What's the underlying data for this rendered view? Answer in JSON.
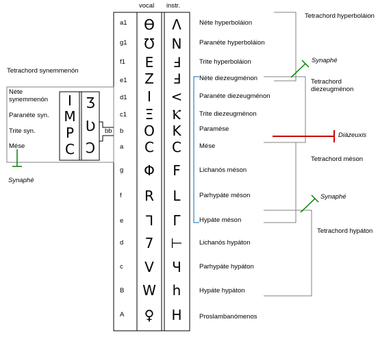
{
  "columns": {
    "vocal": "vocal",
    "instr": "instr."
  },
  "pitches": [
    "a1",
    "g1",
    "f1",
    "e1",
    "d1",
    "c1",
    "b",
    "a",
    "g",
    "f",
    "e",
    "d",
    "c",
    "B",
    "A"
  ],
  "names": [
    "Néte hyperboláion",
    "Paranéte hyperboláion",
    "Trite hyperboláion",
    "Néte diezeugménon",
    "Paranéte diezeugménon",
    "Trite diezeugménon",
    "Paramése",
    "Mése",
    "Lichanós méson",
    "Parhypáte méson",
    "Hypáte méson",
    "Lichanós hypáton",
    "Parhypáte hypáton",
    "Hypáte hypáton",
    "Proslambanómenos"
  ],
  "vocal_glyphs": [
    "ϴ",
    "Ʊ",
    "Ε",
    "Ζ",
    "Ι",
    "Ξ",
    "Ο",
    "C",
    "Φ",
    "R",
    "ᒣ",
    "7",
    "V",
    "W",
    "♀"
  ],
  "instr_glyphs": [
    "Ʌ",
    "Ν",
    "Ⅎ",
    "Ⅎ",
    "<",
    "Ⲕ",
    "K",
    "C",
    "F",
    "L",
    "Γ",
    "⊢",
    "Ч",
    "h",
    "H"
  ],
  "tetrachords": {
    "hyperbolaion": "Tetrachord hyperboláion",
    "diezeugmenon": "Tetrachord diezeugménon",
    "meson": "Tetrachord méson",
    "hypaton": "Tetrachord hypáton",
    "synemmenon": "Tetrachord synemmenón"
  },
  "synemmenon": {
    "nete": "Néte synemmenón",
    "paranete": "Paranéte syn.",
    "trite": "Trite syn.",
    "mese": "Mése",
    "bb": "bb",
    "vocal_glyphs": [
      "Ι",
      "Μ",
      "P",
      "C"
    ],
    "instr_glyphs": [
      "Ʒ",
      "Ʋ",
      "Ͻ"
    ]
  },
  "annotations": {
    "synaphe_top": "Synaphé",
    "synaphe_mid": "Synaphé",
    "synaphe_left": "Synaphé",
    "diazeuxis": "Diázeuxis"
  },
  "colors": {
    "synaphe": "#008000",
    "diazeuxis": "#cc0000",
    "bracket_blue": "#0066cc",
    "grey": "#808080"
  }
}
